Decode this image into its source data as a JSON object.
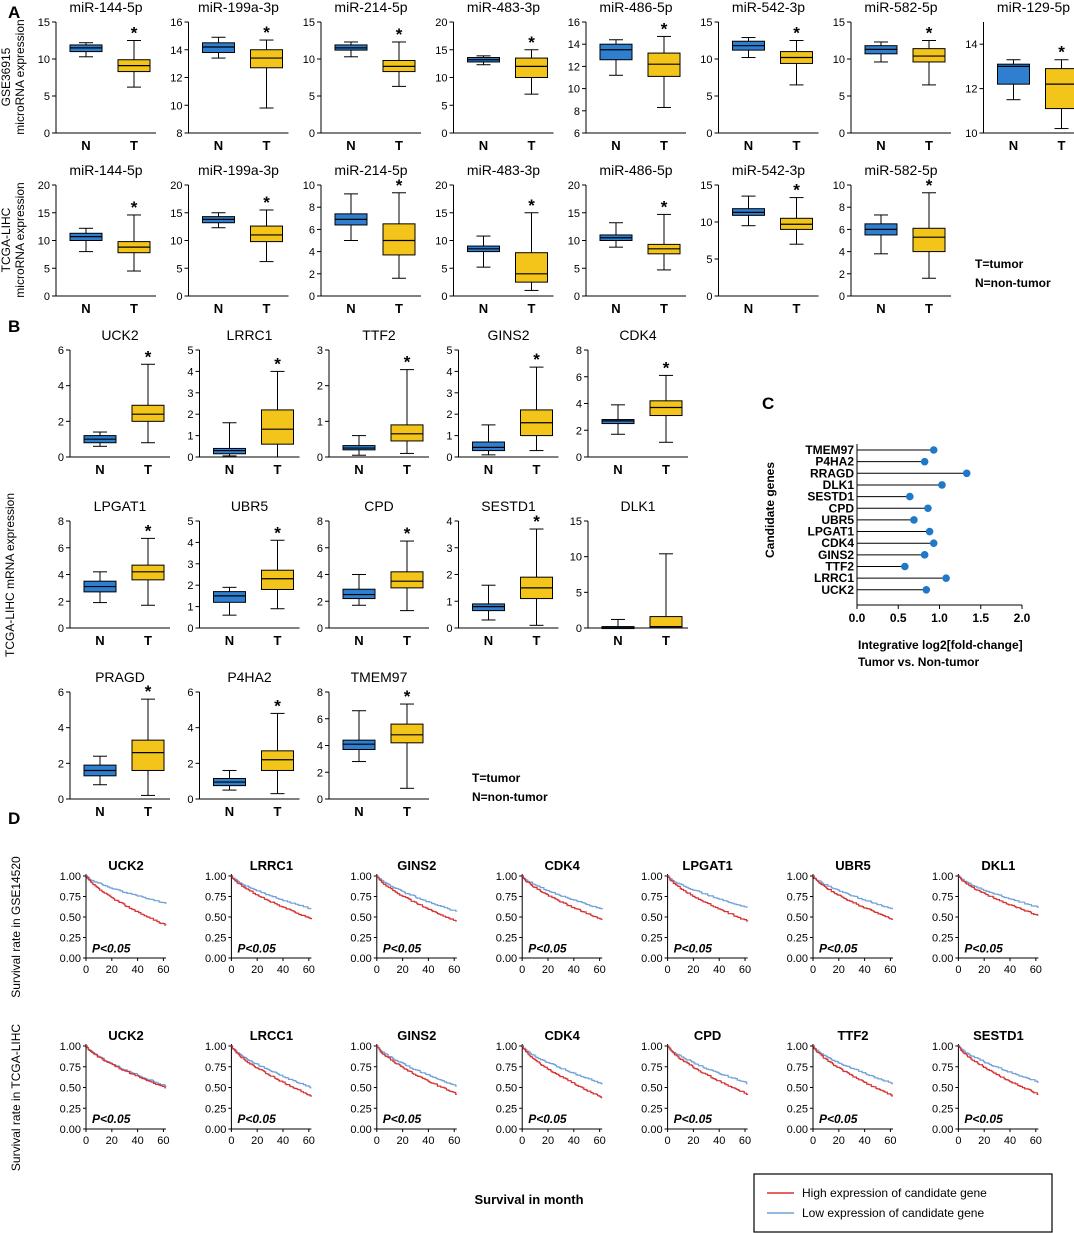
{
  "panel_labels": {
    "A": "A",
    "B": "B",
    "C": "C",
    "D": "D"
  },
  "notes": {
    "tumor": "T=tumor",
    "nontumor": "N=non-tumor"
  },
  "colors": {
    "normal_box": "#2e7fd0",
    "tumor_box": "#f3c51a",
    "high": "#d73030",
    "low": "#6fa0d8"
  },
  "significance_mark": "*",
  "pvalue_text": "P<0.05",
  "chart_data": [
    {
      "id": "A1",
      "type": "box",
      "panel": "A",
      "ylabel": [
        "GSE36915",
        "microRNA expression"
      ],
      "categories": [
        "N",
        "T"
      ],
      "plots": [
        {
          "title": "miR-144-5p",
          "ylim": [
            0,
            15
          ],
          "ticks": [
            0,
            5,
            10,
            15
          ],
          "N": {
            "min": 10.3,
            "q1": 11.0,
            "med": 11.5,
            "q3": 11.9,
            "max": 12.2
          },
          "T": {
            "min": 6.2,
            "q1": 8.3,
            "med": 9.1,
            "q3": 9.9,
            "max": 12.5
          },
          "sig": true
        },
        {
          "title": "miR-199a-3p",
          "ylim": [
            8,
            16
          ],
          "ticks": [
            8,
            10,
            12,
            14,
            16
          ],
          "N": {
            "min": 13.4,
            "q1": 13.8,
            "med": 14.2,
            "q3": 14.5,
            "max": 14.9
          },
          "T": {
            "min": 9.8,
            "q1": 12.7,
            "med": 13.4,
            "q3": 14.0,
            "max": 14.7
          },
          "sig": true
        },
        {
          "title": "miR-214-5p",
          "ylim": [
            0,
            15
          ],
          "ticks": [
            0,
            5,
            10,
            15
          ],
          "N": {
            "min": 10.3,
            "q1": 11.2,
            "med": 11.5,
            "q3": 11.9,
            "max": 12.3
          },
          "T": {
            "min": 6.3,
            "q1": 8.3,
            "med": 9.0,
            "q3": 9.8,
            "max": 12.3
          },
          "sig": true
        },
        {
          "title": "miR-483-3p",
          "ylim": [
            0,
            20
          ],
          "ticks": [
            0,
            5,
            10,
            15,
            20
          ],
          "N": {
            "min": 12.3,
            "q1": 12.8,
            "med": 13.2,
            "q3": 13.6,
            "max": 13.9
          },
          "T": {
            "min": 7.0,
            "q1": 10.0,
            "med": 12.0,
            "q3": 13.5,
            "max": 15.0
          },
          "sig": true
        },
        {
          "title": "miR-486-5p",
          "ylim": [
            6,
            16
          ],
          "ticks": [
            6,
            8,
            10,
            12,
            14,
            16
          ],
          "N": {
            "min": 11.2,
            "q1": 12.6,
            "med": 13.5,
            "q3": 14.0,
            "max": 14.4
          },
          "T": {
            "min": 8.3,
            "q1": 11.1,
            "med": 12.2,
            "q3": 13.2,
            "max": 14.7
          },
          "sig": true
        },
        {
          "title": "miR-542-3p",
          "ylim": [
            0,
            15
          ],
          "ticks": [
            0,
            5,
            10,
            15
          ],
          "N": {
            "min": 10.2,
            "q1": 11.2,
            "med": 11.8,
            "q3": 12.4,
            "max": 12.9
          },
          "T": {
            "min": 6.5,
            "q1": 9.4,
            "med": 10.2,
            "q3": 11.0,
            "max": 12.5
          },
          "sig": true
        },
        {
          "title": "miR-582-5p",
          "ylim": [
            0,
            15
          ],
          "ticks": [
            0,
            5,
            10,
            15
          ],
          "N": {
            "min": 9.6,
            "q1": 10.7,
            "med": 11.3,
            "q3": 11.8,
            "max": 12.3
          },
          "T": {
            "min": 6.5,
            "q1": 9.6,
            "med": 10.4,
            "q3": 11.4,
            "max": 12.5
          },
          "sig": true
        },
        {
          "title": "miR-129-5p",
          "ylim": [
            10,
            15
          ],
          "ticks": [
            10,
            12,
            14
          ],
          "N": {
            "min": 11.5,
            "q1": 12.2,
            "med": 13.0,
            "q3": 13.1,
            "max": 13.3
          },
          "T": {
            "min": 10.2,
            "q1": 11.1,
            "med": 12.2,
            "q3": 12.9,
            "max": 13.3
          },
          "sig": true
        }
      ]
    },
    {
      "id": "A2",
      "type": "box",
      "panel": "A",
      "ylabel": [
        "TCGA-LIHC",
        "microRNA expression"
      ],
      "categories": [
        "N",
        "T"
      ],
      "plots": [
        {
          "title": "miR-144-5p",
          "ylim": [
            0,
            20
          ],
          "ticks": [
            0,
            5,
            10,
            15,
            20
          ],
          "N": {
            "min": 8.0,
            "q1": 10.0,
            "med": 10.7,
            "q3": 11.3,
            "max": 12.2
          },
          "T": {
            "min": 4.5,
            "q1": 7.8,
            "med": 8.8,
            "q3": 9.8,
            "max": 14.6
          },
          "sig": true
        },
        {
          "title": "miR-199a-3p",
          "ylim": [
            0,
            20
          ],
          "ticks": [
            0,
            5,
            10,
            15,
            20
          ],
          "N": {
            "min": 12.3,
            "q1": 13.2,
            "med": 13.8,
            "q3": 14.3,
            "max": 15.0
          },
          "T": {
            "min": 6.2,
            "q1": 9.8,
            "med": 11.0,
            "q3": 12.6,
            "max": 15.5
          },
          "sig": true
        },
        {
          "title": "miR-214-5p",
          "ylim": [
            0,
            10
          ],
          "ticks": [
            0,
            2,
            4,
            6,
            8,
            10
          ],
          "N": {
            "min": 5.0,
            "q1": 6.4,
            "med": 6.9,
            "q3": 7.4,
            "max": 9.2
          },
          "T": {
            "min": 1.6,
            "q1": 3.7,
            "med": 5.0,
            "q3": 6.5,
            "max": 9.3
          },
          "sig": true
        },
        {
          "title": "miR-483-3p",
          "ylim": [
            0,
            20
          ],
          "ticks": [
            0,
            5,
            10,
            15,
            20
          ],
          "N": {
            "min": 5.2,
            "q1": 8.0,
            "med": 8.5,
            "q3": 9.0,
            "max": 10.8
          },
          "T": {
            "min": 1.0,
            "q1": 2.5,
            "med": 4.0,
            "q3": 7.8,
            "max": 15.0
          },
          "sig": true
        },
        {
          "title": "miR-486-5p",
          "ylim": [
            0,
            20
          ],
          "ticks": [
            0,
            5,
            10,
            15,
            20
          ],
          "N": {
            "min": 8.8,
            "q1": 10.0,
            "med": 10.5,
            "q3": 11.0,
            "max": 13.2
          },
          "T": {
            "min": 4.7,
            "q1": 7.6,
            "med": 8.5,
            "q3": 9.3,
            "max": 14.7
          },
          "sig": true
        },
        {
          "title": "miR-542-3p",
          "ylim": [
            0,
            15
          ],
          "ticks": [
            0,
            5,
            10,
            15
          ],
          "N": {
            "min": 9.5,
            "q1": 10.9,
            "med": 11.3,
            "q3": 11.8,
            "max": 13.5
          },
          "T": {
            "min": 7.0,
            "q1": 9.0,
            "med": 9.7,
            "q3": 10.5,
            "max": 13.3
          },
          "sig": true
        },
        {
          "title": "miR-582-5p",
          "ylim": [
            0,
            10
          ],
          "ticks": [
            0,
            2,
            4,
            6,
            8,
            10
          ],
          "N": {
            "min": 3.8,
            "q1": 5.5,
            "med": 6.0,
            "q3": 6.5,
            "max": 7.3
          },
          "T": {
            "min": 1.6,
            "q1": 4.0,
            "med": 5.3,
            "q3": 6.1,
            "max": 9.3
          },
          "sig": true
        }
      ]
    },
    {
      "id": "B",
      "type": "box",
      "panel": "B",
      "ylabel": [
        "TCGA-LIHC mRNA expression"
      ],
      "categories": [
        "N",
        "T"
      ],
      "plots": [
        {
          "title": "UCK2",
          "ylim": [
            0,
            6
          ],
          "ticks": [
            0,
            2,
            4,
            6
          ],
          "N": {
            "min": 0.6,
            "q1": 0.8,
            "med": 1.0,
            "q3": 1.2,
            "max": 1.4
          },
          "T": {
            "min": 0.8,
            "q1": 2.0,
            "med": 2.4,
            "q3": 2.9,
            "max": 5.2
          },
          "sig": true
        },
        {
          "title": "LRRC1",
          "ylim": [
            0,
            5
          ],
          "ticks": [
            0,
            1,
            2,
            3,
            4,
            5
          ],
          "N": {
            "min": 0.05,
            "q1": 0.15,
            "med": 0.3,
            "q3": 0.4,
            "max": 1.6
          },
          "T": {
            "min": 0.0,
            "q1": 0.6,
            "med": 1.3,
            "q3": 2.2,
            "max": 4.0
          },
          "sig": true
        },
        {
          "title": "TTF2",
          "ylim": [
            0,
            3
          ],
          "ticks": [
            0,
            1,
            2,
            3
          ],
          "N": {
            "min": 0.05,
            "q1": 0.2,
            "med": 0.25,
            "q3": 0.32,
            "max": 0.6
          },
          "T": {
            "min": 0.1,
            "q1": 0.45,
            "med": 0.65,
            "q3": 0.9,
            "max": 2.45
          },
          "sig": true
        },
        {
          "title": "GINS2",
          "ylim": [
            0,
            5
          ],
          "ticks": [
            0,
            1,
            2,
            3,
            4,
            5
          ],
          "N": {
            "min": 0.1,
            "q1": 0.3,
            "med": 0.45,
            "q3": 0.7,
            "max": 1.5
          },
          "T": {
            "min": 0.3,
            "q1": 1.0,
            "med": 1.6,
            "q3": 2.2,
            "max": 4.2
          },
          "sig": true
        },
        {
          "title": "CDK4",
          "ylim": [
            0,
            8
          ],
          "ticks": [
            0,
            2,
            4,
            6,
            8
          ],
          "N": {
            "min": 1.7,
            "q1": 2.5,
            "med": 2.7,
            "q3": 2.8,
            "max": 3.9
          },
          "T": {
            "min": 1.1,
            "q1": 3.1,
            "med": 3.7,
            "q3": 4.2,
            "max": 6.1
          },
          "sig": true
        },
        {
          "title": "LPGAT1",
          "ylim": [
            0,
            8
          ],
          "ticks": [
            0,
            2,
            4,
            6,
            8
          ],
          "N": {
            "min": 1.9,
            "q1": 2.7,
            "med": 3.1,
            "q3": 3.5,
            "max": 4.2
          },
          "T": {
            "min": 1.7,
            "q1": 3.6,
            "med": 4.2,
            "q3": 4.7,
            "max": 6.7
          },
          "sig": true
        },
        {
          "title": "UBR5",
          "ylim": [
            0,
            5
          ],
          "ticks": [
            0,
            1,
            2,
            3,
            4,
            5
          ],
          "N": {
            "min": 0.6,
            "q1": 1.2,
            "med": 1.5,
            "q3": 1.7,
            "max": 1.9
          },
          "T": {
            "min": 0.9,
            "q1": 1.8,
            "med": 2.3,
            "q3": 2.7,
            "max": 4.1
          },
          "sig": true
        },
        {
          "title": "CPD",
          "ylim": [
            0,
            8
          ],
          "ticks": [
            0,
            2,
            4,
            6,
            8
          ],
          "N": {
            "min": 1.7,
            "q1": 2.2,
            "med": 2.5,
            "q3": 2.9,
            "max": 4.0
          },
          "T": {
            "min": 1.3,
            "q1": 3.0,
            "med": 3.5,
            "q3": 4.2,
            "max": 6.5
          },
          "sig": true
        },
        {
          "title": "SESTD1",
          "ylim": [
            0,
            4
          ],
          "ticks": [
            0,
            1,
            2,
            3,
            4
          ],
          "N": {
            "min": 0.3,
            "q1": 0.65,
            "med": 0.8,
            "q3": 0.9,
            "max": 1.6
          },
          "T": {
            "min": 0.1,
            "q1": 1.1,
            "med": 1.5,
            "q3": 1.9,
            "max": 3.7
          },
          "sig": true
        },
        {
          "title": "DLK1",
          "ylim": [
            0,
            15
          ],
          "ticks": [
            0,
            5,
            10,
            15
          ],
          "N": {
            "min": 0.0,
            "q1": 0.05,
            "med": 0.1,
            "q3": 0.2,
            "max": 1.2
          },
          "T": {
            "min": 0.0,
            "q1": 0.05,
            "med": 0.2,
            "q3": 1.6,
            "max": 10.4
          },
          "sig": false
        },
        {
          "title": "PRAGD",
          "ylim": [
            0,
            6
          ],
          "ticks": [
            0,
            2,
            4,
            6
          ],
          "N": {
            "min": 0.8,
            "q1": 1.3,
            "med": 1.6,
            "q3": 1.9,
            "max": 2.4
          },
          "T": {
            "min": 0.2,
            "q1": 1.6,
            "med": 2.6,
            "q3": 3.3,
            "max": 5.6
          },
          "sig": true
        },
        {
          "title": "P4HA2",
          "ylim": [
            0,
            6
          ],
          "ticks": [
            0,
            2,
            4,
            6
          ],
          "N": {
            "min": 0.5,
            "q1": 0.75,
            "med": 0.95,
            "q3": 1.15,
            "max": 1.6
          },
          "T": {
            "min": 0.3,
            "q1": 1.6,
            "med": 2.2,
            "q3": 2.7,
            "max": 4.8
          },
          "sig": true
        },
        {
          "title": "TMEM97",
          "ylim": [
            0,
            8
          ],
          "ticks": [
            0,
            2,
            4,
            6,
            8
          ],
          "N": {
            "min": 2.8,
            "q1": 3.7,
            "med": 4.1,
            "q3": 4.4,
            "max": 6.6
          },
          "T": {
            "min": 0.8,
            "q1": 4.2,
            "med": 4.8,
            "q3": 5.6,
            "max": 7.1
          },
          "sig": true
        }
      ]
    },
    {
      "id": "C",
      "type": "lollipop",
      "panel": "C",
      "ylabel": "Candidate genes",
      "xlabel": [
        "Integrative log2[fold-change]",
        "Tumor vs. Non-tumor"
      ],
      "xlim": [
        0,
        2.0
      ],
      "xticks": [
        "0.0",
        "0.5",
        "1.0",
        "1.5",
        "2.0"
      ],
      "genes": [
        "TMEM97",
        "P4HA2",
        "RRAGD",
        "DLK1",
        "SESTD1",
        "CPD",
        "UBR5",
        "LPGAT1",
        "CDK4",
        "GINS2",
        "TTF2",
        "LRRC1",
        "UCK2"
      ],
      "values": [
        0.93,
        0.82,
        1.33,
        1.03,
        0.64,
        0.86,
        0.69,
        0.88,
        0.93,
        0.82,
        0.58,
        1.08,
        0.84
      ]
    },
    {
      "id": "D1",
      "type": "km",
      "panel": "D",
      "ylabel": "Survival rate in GSE14520",
      "xticks": [
        0,
        20,
        40,
        60
      ],
      "yticks": [
        "0.00",
        "0.25",
        "0.50",
        "0.75",
        "1.00"
      ],
      "series_names": [
        "High expression of candidate gene",
        "Low expression of candidate gene"
      ],
      "plots": [
        {
          "title": "UCK2",
          "high_end": 0.4,
          "low_end": 0.67
        },
        {
          "title": "LRRC1",
          "high_end": 0.48,
          "low_end": 0.6
        },
        {
          "title": "GINS2",
          "high_end": 0.45,
          "low_end": 0.57
        },
        {
          "title": "CDK4",
          "high_end": 0.47,
          "low_end": 0.6
        },
        {
          "title": "LPGAT1",
          "high_end": 0.45,
          "low_end": 0.62
        },
        {
          "title": "UBR5",
          "high_end": 0.47,
          "low_end": 0.6
        },
        {
          "title": "DKL1",
          "high_end": 0.52,
          "low_end": 0.62
        }
      ]
    },
    {
      "id": "D2",
      "type": "km",
      "panel": "D",
      "ylabel": "Survival rate in TCGA-LIHC",
      "xticks": [
        0,
        20,
        40,
        60
      ],
      "yticks": [
        "0.00",
        "0.25",
        "0.50",
        "0.75",
        "1.00"
      ],
      "xlabel": "Survival in month",
      "plots": [
        {
          "title": "UCK2",
          "high_end": 0.5,
          "low_end": 0.52
        },
        {
          "title": "LRCC1",
          "high_end": 0.4,
          "low_end": 0.5
        },
        {
          "title": "GINS2",
          "high_end": 0.42,
          "low_end": 0.52
        },
        {
          "title": "CDK4",
          "high_end": 0.38,
          "low_end": 0.55
        },
        {
          "title": "CPD",
          "high_end": 0.42,
          "low_end": 0.55
        },
        {
          "title": "TTF2",
          "high_end": 0.4,
          "low_end": 0.55
        },
        {
          "title": "SESTD1",
          "high_end": 0.42,
          "low_end": 0.57
        }
      ]
    }
  ],
  "legend": {
    "high": "High expression of candidate gene",
    "low": "Low expression of candidate gene"
  }
}
